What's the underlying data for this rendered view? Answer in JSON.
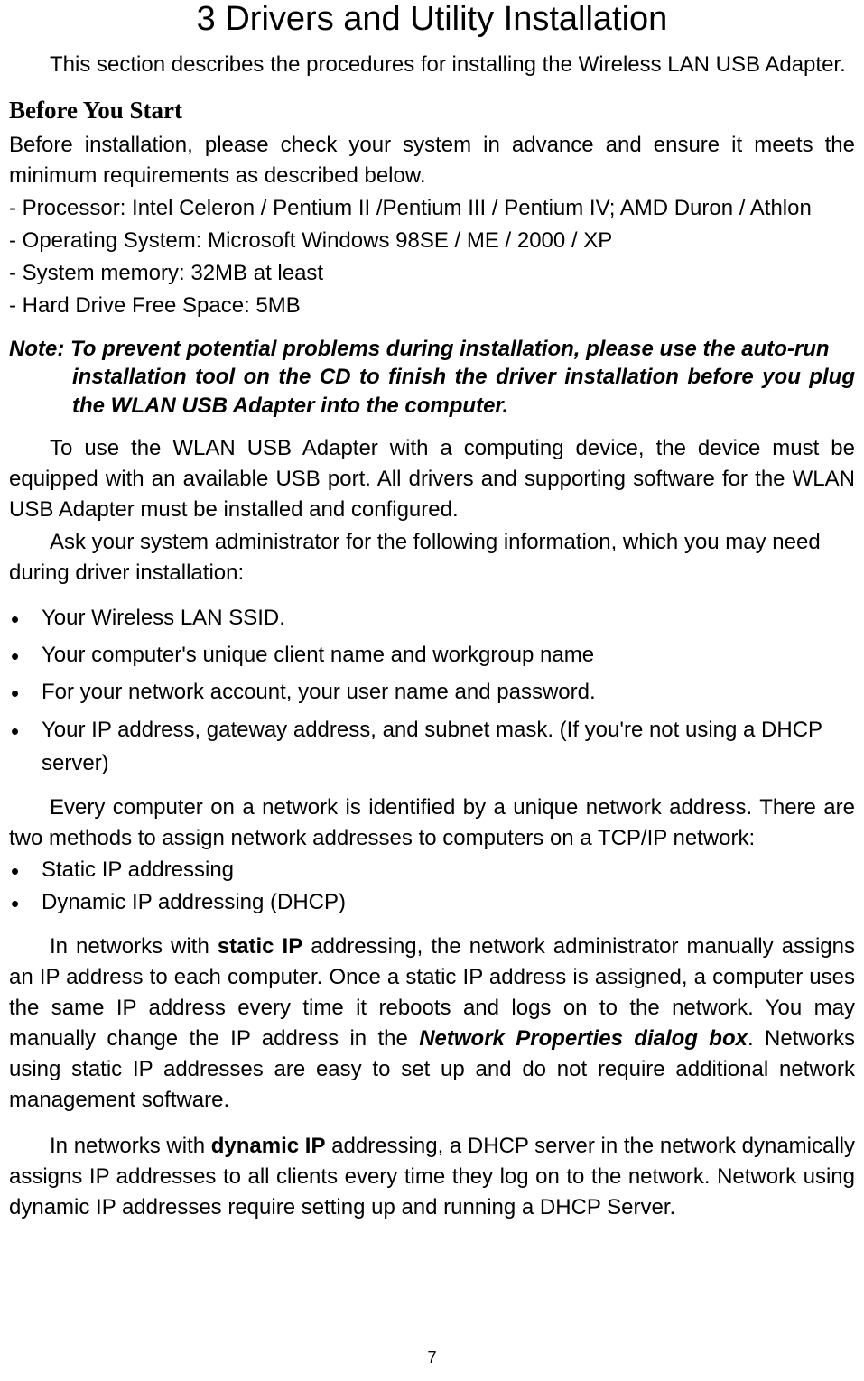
{
  "title": "3 Drivers and Utility Installation",
  "intro": "This section describes the procedures for installing the Wireless LAN USB Adapter.",
  "before": {
    "heading": "Before You Start",
    "lead": "Before installation, please check your system in advance and ensure it meets the minimum requirements as described below.",
    "reqs": [
      "- Processor: Intel Celeron / Pentium II /Pentium III / Pentium IV; AMD Duron / Athlon",
      "- Operating System: Microsoft Windows 98SE / ME / 2000 / XP",
      "- System memory: 32MB at least",
      "- Hard Drive Free Space: 5MB"
    ]
  },
  "note": {
    "line1": "Note: To prevent potential problems during installation, please use the auto-run",
    "rest": "installation tool on the CD to finish the driver installation before you plug the WLAN USB Adapter into the computer."
  },
  "usage": {
    "p1": "To use the WLAN USB Adapter with a computing device, the device must be equipped with an available USB port. All drivers and supporting software for the WLAN USB Adapter must be installed and configured.",
    "p2": "Ask your system administrator for the following information, which you may need during driver installation:"
  },
  "info_bullets": [
    "Your Wireless LAN SSID.",
    "Your computer's unique client name and workgroup name",
    "For your network account, your user name and password.",
    "Your IP address, gateway address, and subnet mask. (If you're not using a DHCP server)"
  ],
  "addressing": {
    "lead": "Every computer on a network is identified by a unique network address. There are two methods to assign network addresses to computers on a TCP/IP network:",
    "methods": [
      "Static IP addressing",
      "Dynamic IP addressing (DHCP)"
    ]
  },
  "static": {
    "prefix": "In networks with ",
    "bold": "static IP",
    "mid1": " addressing, the network administrator manually assigns an IP address to each computer. Once a static IP address is assigned, a computer uses the same IP address every time it reboots and logs on to the network. You may manually change the IP address in the ",
    "bi": "Network Properties dialog box",
    "suffix": ". Networks using static IP addresses are easy to set up and do not require additional network management software."
  },
  "dynamic": {
    "prefix": "In networks with ",
    "bold": "dynamic IP",
    "suffix": " addressing, a DHCP server in the network dynamically assigns IP addresses to all clients every time they log on to the network. Network using dynamic IP addresses require setting up and running a DHCP Server."
  },
  "page_number": "7"
}
